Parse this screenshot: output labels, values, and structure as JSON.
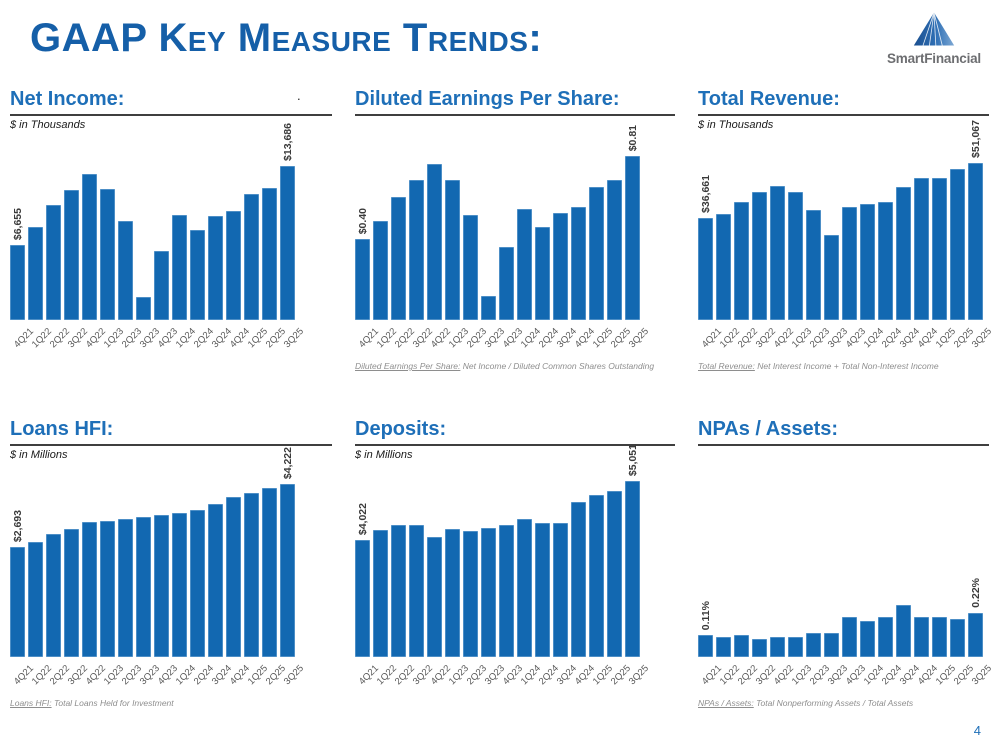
{
  "page": {
    "title": "GAAP Key Measure Trends:",
    "page_number": "4",
    "stray_dot": "."
  },
  "logo": {
    "name": "SmartFinancial",
    "mark": "triangle-mountain-icon"
  },
  "colors": {
    "bar_blue": "#1268B1",
    "heading_blue": "#1E6FB8",
    "title_blue": "#155FA8",
    "tick_gray": "#595959",
    "footnote_gray": "#8E8E8E",
    "rule_gray": "#3F3F3F",
    "logo_text_gray": "#6D6E71",
    "logo_mark_blue": "#2E6FB5"
  },
  "chart_data": [
    {
      "type": "bar",
      "title": "Net Income:",
      "subtitle": "$ in Thousands",
      "categories": [
        "4Q21",
        "1Q22",
        "2Q22",
        "3Q22",
        "4Q22",
        "1Q23",
        "2Q23",
        "3Q23",
        "4Q23",
        "1Q24",
        "2Q24",
        "3Q24",
        "4Q24",
        "1Q25",
        "2Q25",
        "3Q25"
      ],
      "values": [
        6655,
        8280,
        10200,
        11530,
        13000,
        11620,
        8780,
        2010,
        6120,
        9370,
        7990,
        9220,
        9670,
        11240,
        11740,
        13686
      ],
      "label_first": "$6,655",
      "label_last": "$13,686",
      "ylim": [
        0,
        16200
      ],
      "grid": false,
      "legend": "none",
      "footnote_label": "",
      "footnote_text": ""
    },
    {
      "type": "bar",
      "title": "Diluted Earnings Per Share:",
      "subtitle": "",
      "categories": [
        "4Q21",
        "1Q22",
        "2Q22",
        "3Q22",
        "4Q22",
        "1Q23",
        "2Q23",
        "3Q23",
        "4Q23",
        "1Q24",
        "2Q24",
        "3Q24",
        "4Q24",
        "1Q25",
        "2Q25",
        "3Q25"
      ],
      "values": [
        0.4,
        0.49,
        0.61,
        0.69,
        0.77,
        0.69,
        0.52,
        0.12,
        0.36,
        0.55,
        0.46,
        0.53,
        0.56,
        0.66,
        0.69,
        0.81
      ],
      "label_first": "$0.40",
      "label_last": "$0.81",
      "ylim": [
        0,
        0.9
      ],
      "grid": false,
      "legend": "none",
      "footnote_label": "Diluted Earnings Per Share:",
      "footnote_text": " Net Income / Diluted Common Shares Outstanding"
    },
    {
      "type": "bar",
      "title": "Total Revenue:",
      "subtitle": "$ in Thousands",
      "categories": [
        "4Q21",
        "1Q22",
        "2Q22",
        "3Q22",
        "4Q22",
        "1Q23",
        "2Q23",
        "3Q23",
        "4Q23",
        "1Q24",
        "2Q24",
        "3Q24",
        "4Q24",
        "1Q25",
        "2Q25",
        "3Q25"
      ],
      "values": [
        36661,
        37700,
        40700,
        43300,
        45100,
        43300,
        38800,
        32300,
        39400,
        40400,
        40700,
        44600,
        47100,
        47100,
        49400,
        51067
      ],
      "label_first": "$36,661",
      "label_last": "$51,067",
      "ylim": [
        10000,
        57500
      ],
      "grid": false,
      "legend": "none",
      "footnote_label": "Total Revenue:",
      "footnote_text": " Net Interest Income + Total Non-Interest Income"
    },
    {
      "type": "bar",
      "title": "Loans HFI:",
      "subtitle": "$ in Millions",
      "categories": [
        "4Q21",
        "1Q22",
        "2Q22",
        "3Q22",
        "4Q22",
        "1Q23",
        "2Q23",
        "3Q23",
        "4Q23",
        "1Q24",
        "2Q24",
        "3Q24",
        "4Q24",
        "1Q25",
        "2Q25",
        "3Q25"
      ],
      "values": [
        2693,
        2810,
        3010,
        3115,
        3290,
        3320,
        3360,
        3410,
        3470,
        3510,
        3590,
        3740,
        3910,
        3990,
        4130,
        4222
      ],
      "label_first": "$2,693",
      "label_last": "$4,222",
      "ylim": [
        0,
        4295
      ],
      "grid": false,
      "legend": "none",
      "footnote_label": "Loans HFI:",
      "footnote_text": " Total Loans Held for Investment"
    },
    {
      "type": "bar",
      "title": "Deposits:",
      "subtitle": "$ in Millions",
      "categories": [
        "4Q21",
        "1Q22",
        "2Q22",
        "3Q22",
        "4Q22",
        "1Q23",
        "2Q23",
        "3Q23",
        "4Q23",
        "1Q24",
        "2Q24",
        "3Q24",
        "4Q24",
        "1Q25",
        "2Q25",
        "3Q25"
      ],
      "values": [
        4022,
        4195,
        4294,
        4294,
        4075,
        4225,
        4185,
        4240,
        4290,
        4400,
        4317,
        4323,
        4690,
        4810,
        4880,
        5051
      ],
      "label_first": "$4,022",
      "label_last": "$5,051",
      "ylim": [
        2000,
        5051
      ],
      "grid": false,
      "legend": "none",
      "footnote_label": "",
      "footnote_text": ""
    },
    {
      "type": "bar",
      "title": "NPAs / Assets:",
      "subtitle": "",
      "categories": [
        "4Q21",
        "1Q22",
        "2Q22",
        "3Q22",
        "4Q22",
        "1Q23",
        "2Q23",
        "3Q23",
        "4Q23",
        "1Q24",
        "2Q24",
        "3Q24",
        "4Q24",
        "1Q25",
        "2Q25",
        "3Q25"
      ],
      "values": [
        0.11,
        0.1,
        0.11,
        0.09,
        0.1,
        0.1,
        0.12,
        0.12,
        0.2,
        0.18,
        0.2,
        0.26,
        0.2,
        0.2,
        0.19,
        0.22
      ],
      "label_first": "0.11%",
      "label_last": "0.22%",
      "ylim": [
        0,
        0.88
      ],
      "grid": false,
      "legend": "none",
      "footnote_label": "NPAs / Assets:",
      "footnote_text": " Total Nonperforming Assets / Total Assets"
    }
  ]
}
